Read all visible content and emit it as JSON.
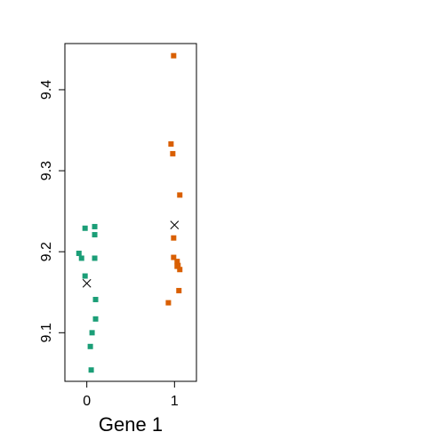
{
  "chart_data": {
    "type": "scatter",
    "title": "",
    "xlabel": "Gene 1",
    "ylabel": "",
    "xlim": [
      -0.25,
      1.25
    ],
    "ylim": [
      9.04,
      9.457
    ],
    "x_ticks": [
      0,
      1
    ],
    "x_tick_labels": [
      "0",
      "1"
    ],
    "y_ticks": [
      9.1,
      9.2,
      9.3,
      9.4
    ],
    "y_tick_labels": [
      "9.1",
      "9.2",
      "9.3",
      "9.4"
    ],
    "grid": false,
    "legend": "none",
    "series": [
      {
        "group": 0,
        "color": "#1b9e77",
        "marker": "square",
        "x": [
          -0.02,
          0.09,
          0.09,
          -0.09,
          -0.06,
          0.09,
          -0.02,
          0.1,
          0.1,
          0.06,
          0.04,
          0.05
        ],
        "y": [
          9.229,
          9.231,
          9.221,
          9.198,
          9.192,
          9.192,
          9.17,
          9.141,
          9.117,
          9.1,
          9.083,
          9.054
        ]
      },
      {
        "group": 1,
        "color": "#d95f02",
        "marker": "square",
        "x": [
          0.99,
          0.96,
          0.98,
          1.06,
          0.99,
          0.99,
          1.03,
          1.04,
          1.03,
          1.06,
          1.05,
          0.93
        ],
        "y": [
          9.442,
          9.333,
          9.321,
          9.27,
          9.217,
          9.193,
          9.188,
          9.183,
          9.182,
          9.178,
          9.152,
          9.137
        ]
      }
    ],
    "means": {
      "marker": "x",
      "color": "#000000",
      "x": [
        0,
        1
      ],
      "y": [
        9.161,
        9.233
      ]
    }
  }
}
